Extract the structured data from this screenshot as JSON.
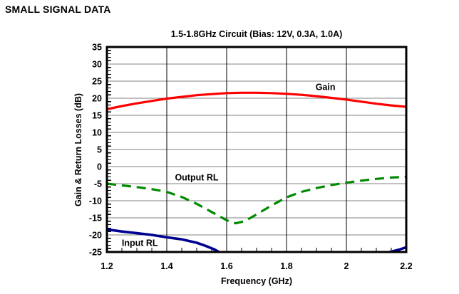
{
  "page": {
    "heading": "SMALL SIGNAL DATA"
  },
  "chart_data": {
    "type": "line",
    "title": "1.5-1.8GHz Circuit (Bias: 12V, 0.3A, 1.0A)",
    "xlabel": "Frequency (GHz)",
    "ylabel": "Gain & Return Losses (dB)",
    "xlim": [
      1.2,
      2.2
    ],
    "ylim": [
      -25,
      35
    ],
    "x_ticks": [
      1.2,
      1.4,
      1.6,
      1.8,
      2.0,
      2.2
    ],
    "x_tick_labels": [
      "1.2",
      "1.4",
      "1.6",
      "1.8",
      "2",
      "2.2"
    ],
    "y_ticks": [
      35,
      30,
      25,
      20,
      15,
      10,
      5,
      0,
      -5,
      -10,
      -15,
      -20,
      -25
    ],
    "x_minor_step": 0.05,
    "y_minor_step": 1,
    "grid": {
      "horizontal": true,
      "vertical": true
    },
    "colors": {
      "h_grid": "#808080",
      "v_grid": "#000000",
      "frame": "#000000"
    },
    "series": [
      {
        "name": "Gain",
        "color": "#ff0000",
        "style": "solid",
        "label": {
          "text": "Gain",
          "x": 1.93,
          "y": 23.3
        },
        "segments": [
          [
            [
              1.2,
              16.8
            ],
            [
              1.25,
              17.7
            ],
            [
              1.3,
              18.5
            ],
            [
              1.35,
              19.2
            ],
            [
              1.4,
              19.9
            ],
            [
              1.45,
              20.4
            ],
            [
              1.5,
              20.9
            ],
            [
              1.55,
              21.2
            ],
            [
              1.6,
              21.5
            ],
            [
              1.65,
              21.6
            ],
            [
              1.7,
              21.6
            ],
            [
              1.75,
              21.5
            ],
            [
              1.8,
              21.3
            ],
            [
              1.85,
              21.0
            ],
            [
              1.9,
              20.6
            ],
            [
              1.95,
              20.1
            ],
            [
              2.0,
              19.6
            ],
            [
              2.05,
              19.0
            ],
            [
              2.1,
              18.4
            ],
            [
              2.15,
              17.9
            ],
            [
              2.2,
              17.5
            ]
          ]
        ]
      },
      {
        "name": "Output RL",
        "color": "#008a00",
        "style": "dashed",
        "label": {
          "text": "Output RL",
          "x": 1.5,
          "y": -3.1
        },
        "segments": [
          [
            [
              1.2,
              -5.0
            ],
            [
              1.25,
              -5.5
            ],
            [
              1.3,
              -6.0
            ],
            [
              1.35,
              -6.6
            ],
            [
              1.4,
              -7.4
            ],
            [
              1.45,
              -8.9
            ],
            [
              1.5,
              -10.9
            ],
            [
              1.55,
              -13.3
            ],
            [
              1.6,
              -15.7
            ],
            [
              1.63,
              -16.6
            ],
            [
              1.66,
              -16.0
            ],
            [
              1.7,
              -14.0
            ],
            [
              1.75,
              -11.4
            ],
            [
              1.8,
              -9.0
            ],
            [
              1.85,
              -7.4
            ],
            [
              1.9,
              -6.3
            ],
            [
              1.95,
              -5.4
            ],
            [
              2.0,
              -4.7
            ],
            [
              2.05,
              -4.1
            ],
            [
              2.1,
              -3.6
            ],
            [
              2.15,
              -3.2
            ],
            [
              2.2,
              -3.0
            ]
          ]
        ]
      },
      {
        "name": "Input RL",
        "color": "#000090",
        "style": "solid",
        "label": {
          "text": "Input RL",
          "x": 1.31,
          "y": -22.3
        },
        "segments": [
          [
            [
              1.2,
              -18.4
            ],
            [
              1.25,
              -19.0
            ],
            [
              1.3,
              -19.5
            ],
            [
              1.35,
              -20.0
            ],
            [
              1.4,
              -20.7
            ],
            [
              1.45,
              -21.3
            ],
            [
              1.5,
              -22.3
            ],
            [
              1.53,
              -23.2
            ],
            [
              1.56,
              -24.3
            ],
            [
              1.58,
              -25.3
            ],
            [
              1.61,
              -26.8
            ]
          ],
          [
            [
              2.12,
              -25.5
            ],
            [
              2.15,
              -24.9
            ],
            [
              2.18,
              -24.2
            ],
            [
              2.2,
              -23.6
            ]
          ]
        ]
      }
    ]
  }
}
